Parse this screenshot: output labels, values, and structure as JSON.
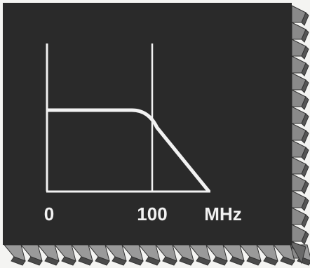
{
  "axis_labels": {
    "origin": "0",
    "cutoff": "100",
    "unit": "MHz"
  }
}
